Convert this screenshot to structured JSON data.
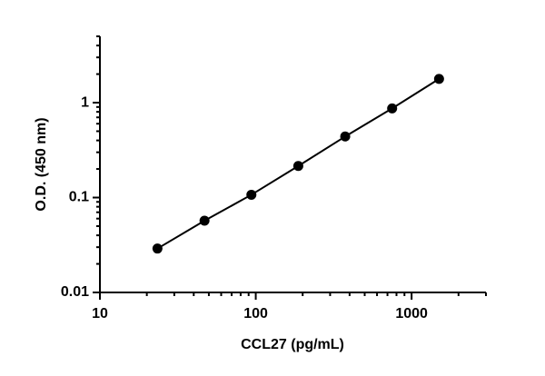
{
  "chart_data": {
    "type": "scatter",
    "line": true,
    "color": "#000000",
    "x_label": "CCL27 (pg/mL)",
    "y_label": "O.D. (450 nm)",
    "x": [
      23.4,
      46.9,
      93.75,
      187.5,
      375,
      750,
      1500
    ],
    "values": [
      0.029,
      0.057,
      0.107,
      0.215,
      0.44,
      0.87,
      1.78
    ],
    "xscale": "log",
    "yscale": "log",
    "xlim": [
      10,
      3000
    ],
    "ylim": [
      0.01,
      5
    ],
    "xticks": [
      10,
      100,
      1000
    ],
    "yticks": [
      0.01,
      0.1,
      1
    ],
    "xticks_minor": [
      20,
      30,
      40,
      50,
      60,
      70,
      80,
      90,
      200,
      300,
      400,
      500,
      600,
      700,
      800,
      900,
      2000,
      3000
    ],
    "yticks_minor": [
      0.02,
      0.03,
      0.04,
      0.05,
      0.06,
      0.07,
      0.08,
      0.09,
      0.2,
      0.3,
      0.4,
      0.5,
      0.6,
      0.7,
      0.8,
      0.9,
      2,
      3,
      4,
      5
    ]
  }
}
